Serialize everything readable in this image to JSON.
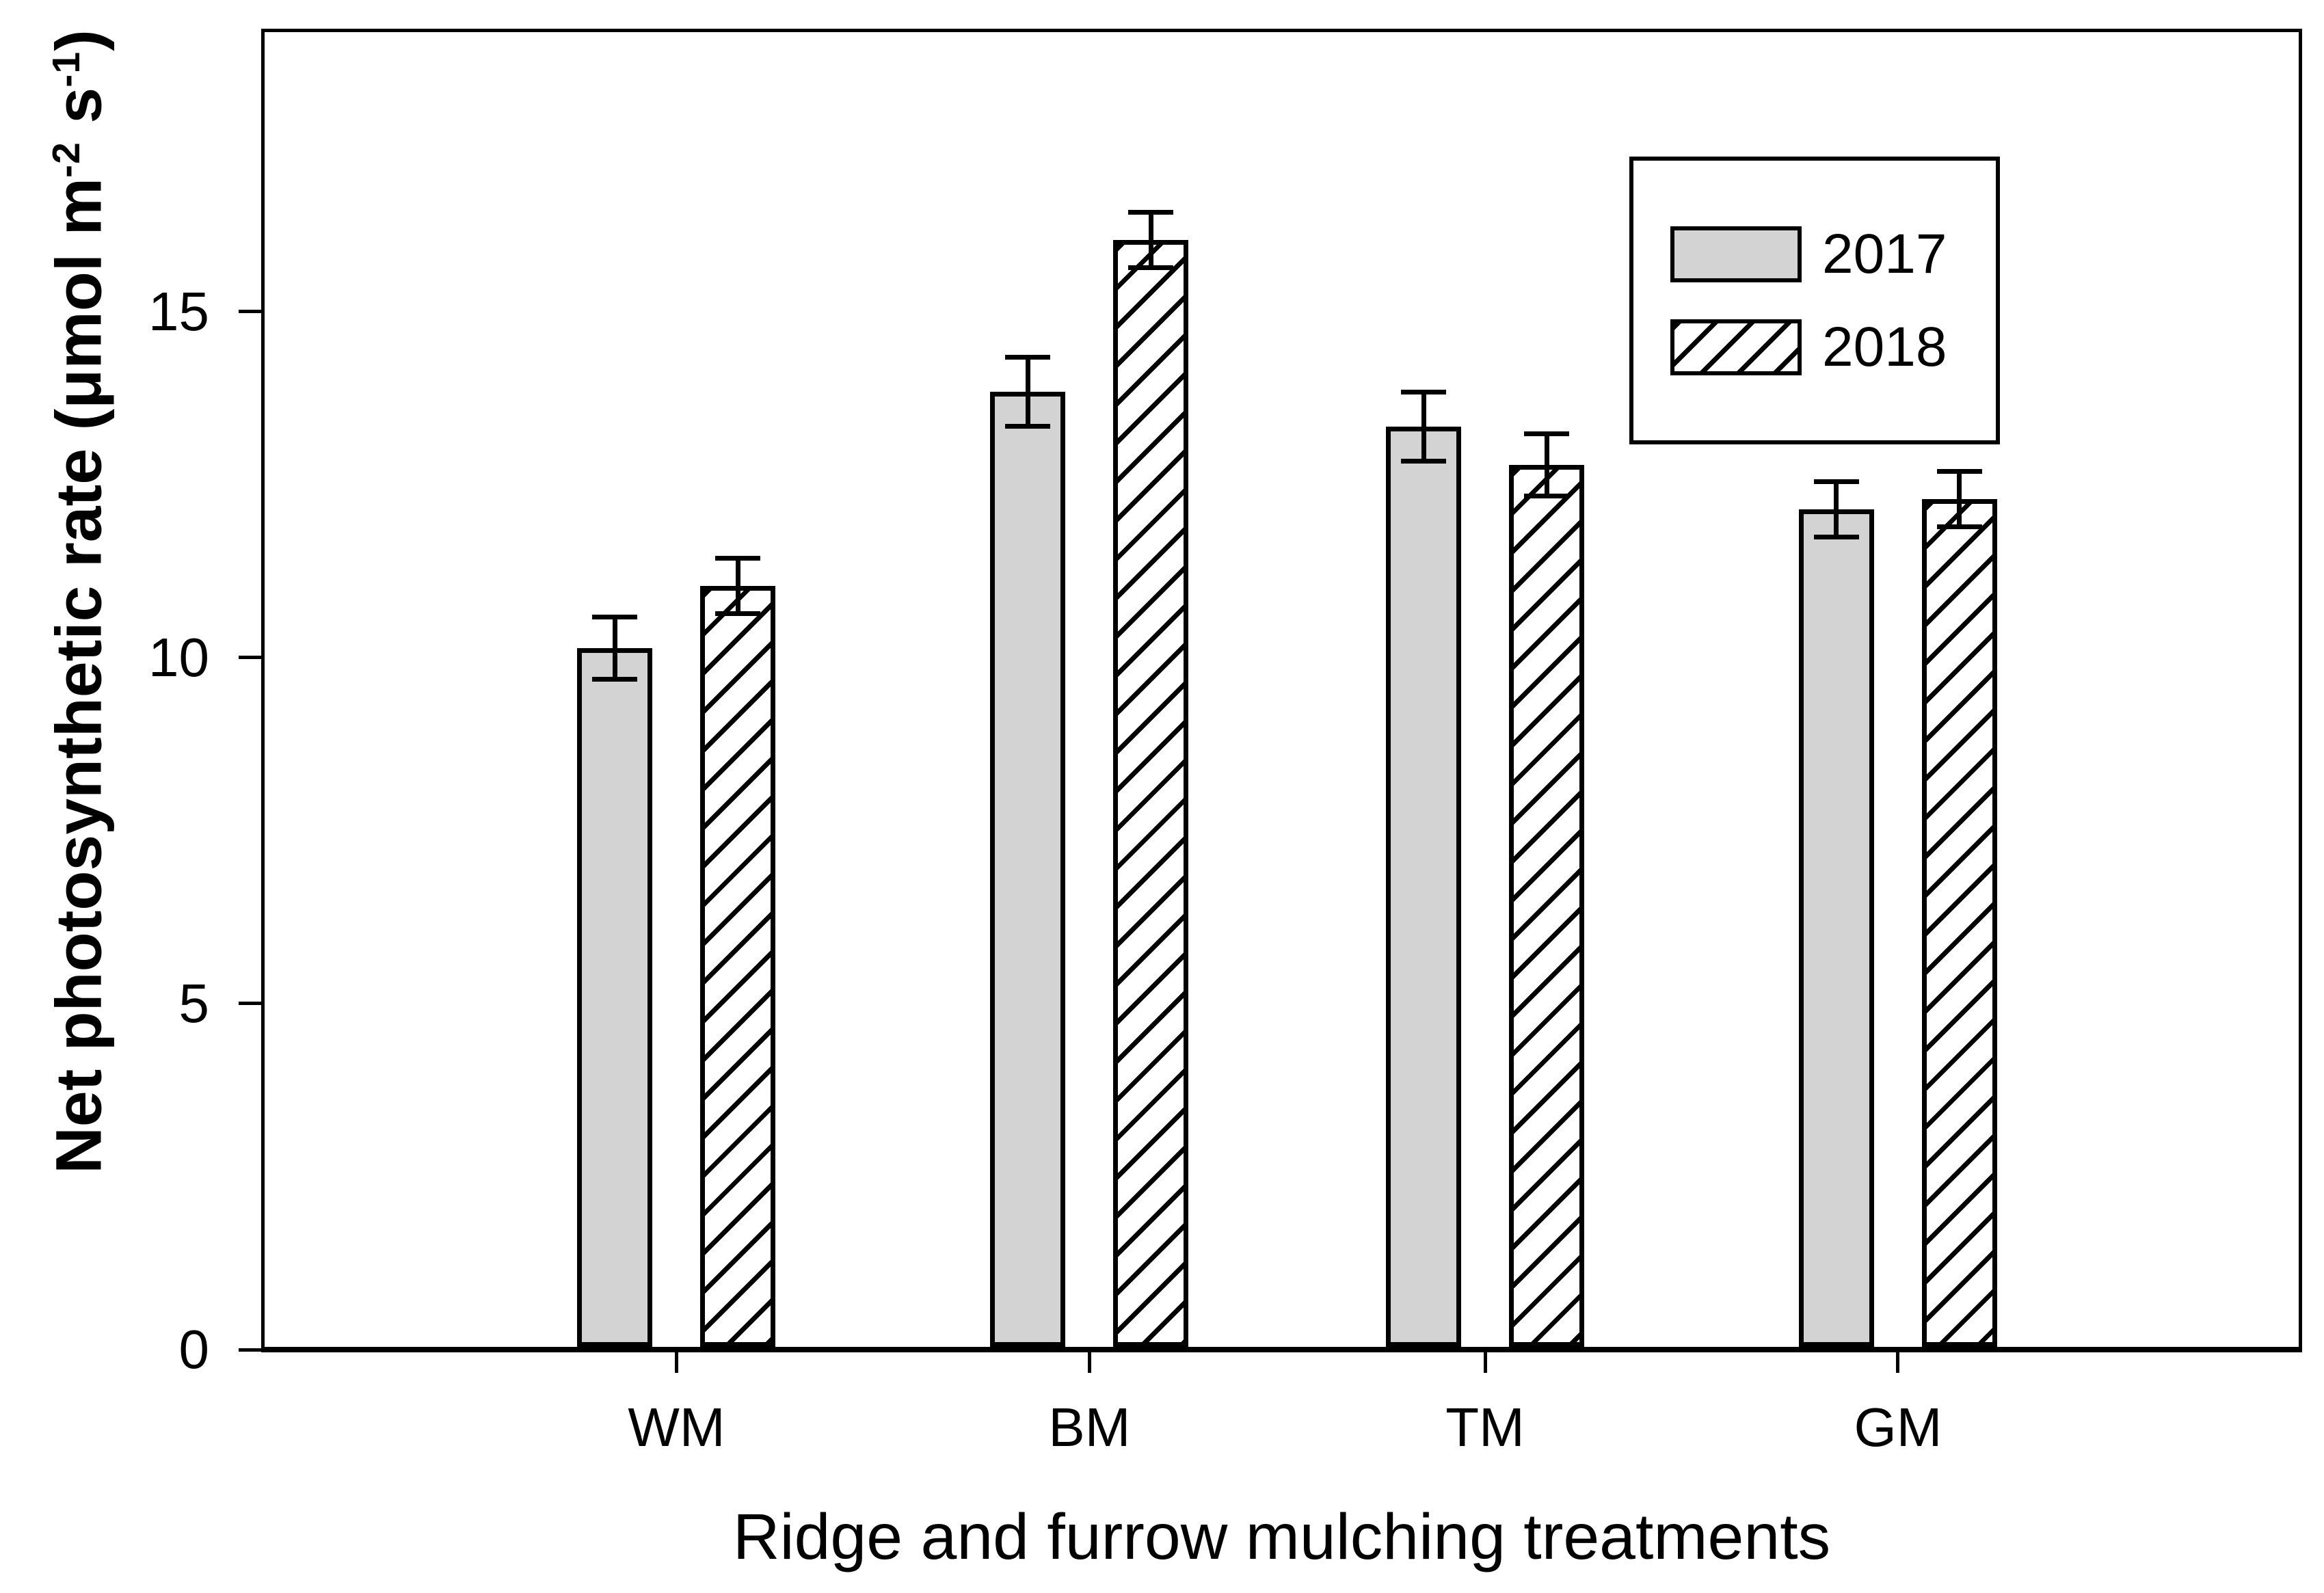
{
  "figure": {
    "y_axis": {
      "title_parts": [
        {
          "text": "Net photosynthetic rate (μmol m"
        },
        {
          "text": "-2",
          "sup": true
        },
        {
          "text": " s"
        },
        {
          "text": "-1",
          "sup": true
        },
        {
          "text": ")"
        }
      ],
      "tick_labels": [
        "0",
        "5",
        "10",
        "15"
      ],
      "tick_values": [
        0,
        5,
        10,
        15
      ]
    },
    "x_axis": {
      "title": "Ridge and furrow mulching treatments",
      "categories": [
        "WM",
        "BM",
        "TM",
        "GM"
      ]
    },
    "legend": {
      "items": [
        {
          "label": "2017",
          "swatch": "gray-fill"
        },
        {
          "label": "2018",
          "swatch": "diagonal-hatch"
        }
      ]
    },
    "colors": {
      "bar_gray_fill": "#d3d3d3",
      "stroke": "#000000",
      "background": "#ffffff"
    }
  },
  "chart_data": {
    "type": "bar",
    "title": "",
    "xlabel": "Ridge and furrow mulching treatments",
    "ylabel": "Net photosynthetic rate (μmol m-2 s-1)",
    "categories": [
      "WM",
      "BM",
      "TM",
      "GM"
    ],
    "series": [
      {
        "name": "2017",
        "style": "gray",
        "values": [
          10.1,
          13.8,
          13.3,
          12.1
        ],
        "errors": [
          0.45,
          0.5,
          0.5,
          0.4
        ]
      },
      {
        "name": "2018",
        "style": "hatch",
        "values": [
          11.0,
          16.0,
          12.75,
          12.25
        ],
        "errors": [
          0.4,
          0.4,
          0.45,
          0.4
        ]
      }
    ],
    "ylim": [
      0,
      19
    ],
    "yticks": [
      0,
      5,
      10,
      15
    ],
    "grid": false,
    "legend_position": "upper-right",
    "error_bars": "symmetric"
  }
}
